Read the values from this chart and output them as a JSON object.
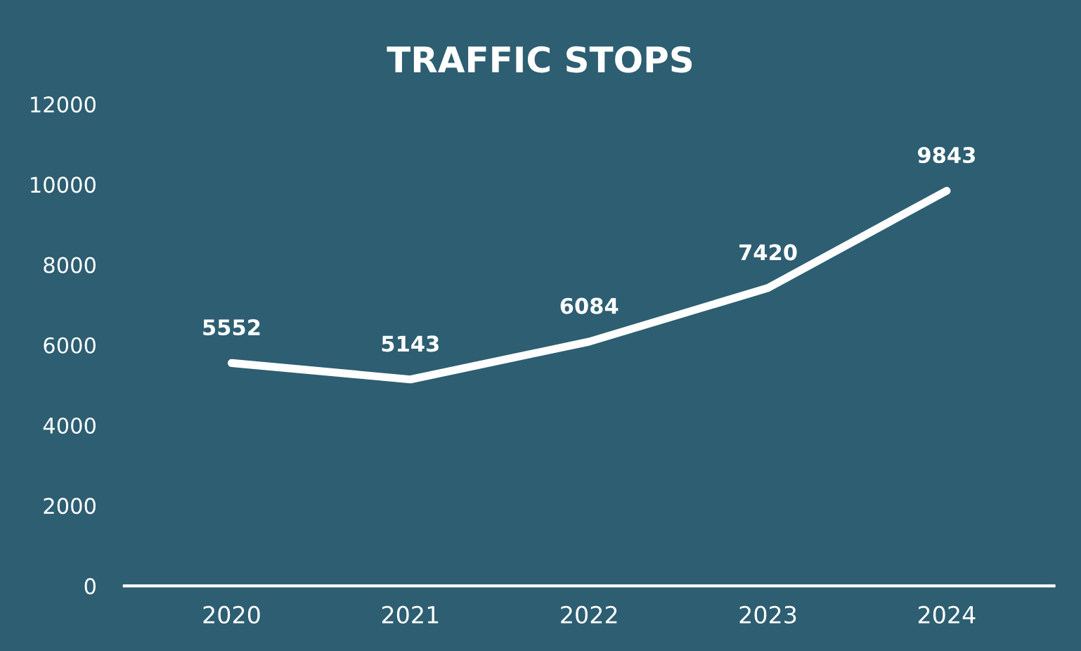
{
  "chart_data": {
    "type": "line",
    "title": "TRAFFIC STOPS",
    "categories": [
      "2020",
      "2021",
      "2022",
      "2023",
      "2024"
    ],
    "values": [
      5552,
      5143,
      6084,
      7420,
      9843
    ],
    "color": "#ffffff",
    "ylim": [
      0,
      12000
    ],
    "yticks": [
      0,
      2000,
      4000,
      6000,
      8000,
      10000,
      12000
    ],
    "grid": false,
    "data_labels": true,
    "marker": "none",
    "line_style": "solid"
  }
}
